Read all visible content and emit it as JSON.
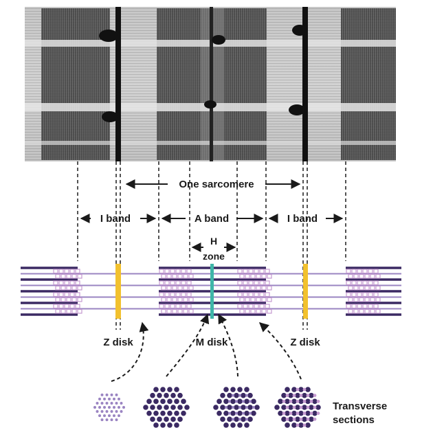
{
  "labels": {
    "one_sarcomere": "One sarcomere",
    "i_band_left": "I band",
    "a_band": "A band",
    "i_band_right": "I band",
    "h_zone_line1": "H",
    "h_zone_line2": "zone",
    "z_disk_left": "Z disk",
    "m_disk": "M disk",
    "z_disk_right": "Z disk",
    "transverse_line1": "Transverse",
    "transverse_line2": "sections"
  },
  "colors": {
    "thick_filament": "#3b2a63",
    "thin_filament": "#9a84c2",
    "z_disk": "#f2c12e",
    "m_disk": "#3fb6a8",
    "cross_bridge": "#c59ad0",
    "micrograph_dark": "#2a2a2a",
    "micrograph_light": "#cfcfcf"
  },
  "transverse_sections": [
    {
      "name": "thin-only",
      "dots": "light"
    },
    {
      "name": "thick-only",
      "dots": "dark"
    },
    {
      "name": "thick-and-thin",
      "dots": "mixed"
    },
    {
      "name": "overlap-dense",
      "dots": "mixed-dense"
    }
  ]
}
